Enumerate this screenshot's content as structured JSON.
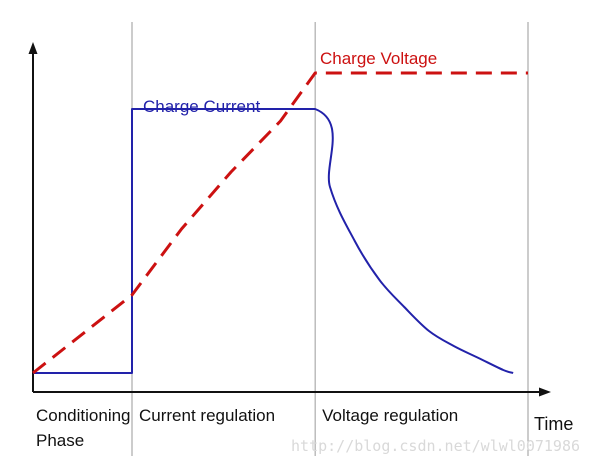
{
  "chart_data": {
    "type": "line",
    "title": "",
    "xlabel": "Time",
    "ylabel": "",
    "phases": [
      {
        "label_lines": [
          "Conditioning",
          "Phase"
        ],
        "start": 0.0,
        "end": 0.2
      },
      {
        "label_lines": [
          "Current regulation"
        ],
        "start": 0.2,
        "end": 0.57
      },
      {
        "label_lines": [
          "Voltage regulation"
        ],
        "start": 0.57,
        "end": 1.0
      }
    ],
    "boundaries": [
      0.2,
      0.57,
      1.0
    ],
    "series": [
      {
        "name": "Charge Current",
        "style": "solid",
        "color": "#2222aa",
        "points": [
          [
            0.0,
            0.0
          ],
          [
            0.2,
            0.0
          ],
          [
            0.2,
            0.88
          ],
          [
            0.57,
            0.88
          ],
          [
            0.6,
            0.62
          ],
          [
            0.65,
            0.44
          ],
          [
            0.7,
            0.31
          ],
          [
            0.75,
            0.22
          ],
          [
            0.8,
            0.14
          ],
          [
            0.85,
            0.09
          ],
          [
            0.9,
            0.05
          ],
          [
            0.95,
            0.01
          ],
          [
            0.97,
            0.0
          ]
        ]
      },
      {
        "name": "Charge Voltage",
        "style": "dashed",
        "color": "#cc1111",
        "points": [
          [
            0.0,
            0.0
          ],
          [
            0.2,
            0.26
          ],
          [
            0.3,
            0.48
          ],
          [
            0.4,
            0.67
          ],
          [
            0.5,
            0.84
          ],
          [
            0.57,
            1.0
          ],
          [
            1.0,
            1.0
          ]
        ]
      }
    ],
    "xlim": [
      0,
      1.05
    ],
    "ylim": [
      0,
      1.15
    ],
    "ticks": "none",
    "grid": false
  },
  "watermark": "http://blog.csdn.net/wlwl0071986",
  "colors": {
    "axis": "#111111",
    "boundary": "#9a9a9a",
    "current": "#2222aa",
    "voltage": "#cc1111"
  }
}
